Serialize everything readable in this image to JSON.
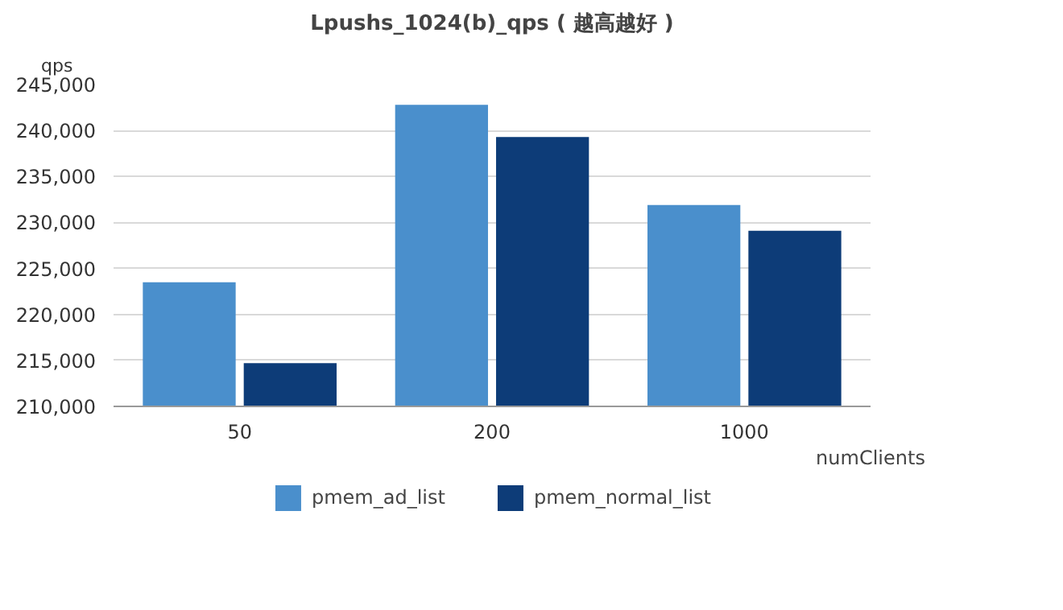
{
  "chart_data": {
    "type": "bar",
    "title": "Lpushs_1024(b)_qps ( 越高越好 )",
    "ylabel": "qps",
    "xlabel": "numClients",
    "categories": [
      "50",
      "200",
      "1000"
    ],
    "series": [
      {
        "name": "pmem_ad_list",
        "color": "#4a8fcc",
        "values": [
          223500,
          242800,
          231900
        ]
      },
      {
        "name": "pmem_normal_list",
        "color": "#0d3c78",
        "values": [
          214700,
          239300,
          229100
        ]
      }
    ],
    "ylim": [
      210000,
      245000
    ],
    "yticks": [
      {
        "value": 210000,
        "label": "210,000"
      },
      {
        "value": 215000,
        "label": "215,000"
      },
      {
        "value": 220000,
        "label": "220,000"
      },
      {
        "value": 225000,
        "label": "225,000"
      },
      {
        "value": 230000,
        "label": "230,000"
      },
      {
        "value": 235000,
        "label": "235,000"
      },
      {
        "value": 240000,
        "label": "240,000"
      },
      {
        "value": 245000,
        "label": "245,000"
      }
    ],
    "grid": "y",
    "legend": "bottom"
  }
}
